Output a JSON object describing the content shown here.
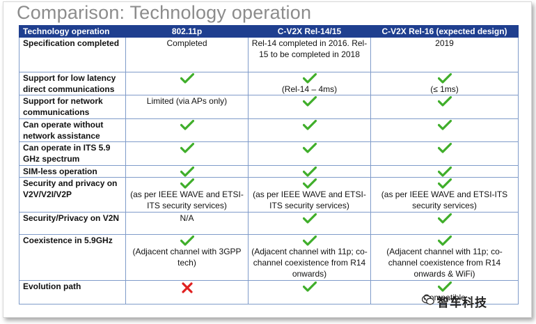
{
  "title": "Comparison: Technology operation",
  "table": {
    "headers": [
      "Technology operation",
      "802.11p",
      "C-V2X Rel-14/15",
      "C-V2X Rel-16 (expected design)"
    ],
    "rows": [
      {
        "label": "Specification completed",
        "c1": {
          "check": false,
          "text": "Completed"
        },
        "c2": {
          "check": false,
          "text": "Rel-14 completed in 2016. Rel-15 to be completed in 2018"
        },
        "c3": {
          "check": false,
          "text": "2019"
        }
      },
      {
        "label": "Support for low latency direct communications",
        "c1": {
          "check": true,
          "text": ""
        },
        "c2": {
          "check": true,
          "text": "(Rel-14 – 4ms)"
        },
        "c3": {
          "check": true,
          "text": "(≤ 1ms)"
        }
      },
      {
        "label": "Support for network communications",
        "c1": {
          "check": false,
          "text": "Limited (via APs only)"
        },
        "c2": {
          "check": true,
          "text": ""
        },
        "c3": {
          "check": true,
          "text": ""
        }
      },
      {
        "label": "Can operate without network assistance",
        "c1": {
          "check": true,
          "text": ""
        },
        "c2": {
          "check": true,
          "text": ""
        },
        "c3": {
          "check": true,
          "text": ""
        }
      },
      {
        "label": "Can operate in ITS 5.9 GHz spectrum",
        "c1": {
          "check": true,
          "text": ""
        },
        "c2": {
          "check": true,
          "text": ""
        },
        "c3": {
          "check": true,
          "text": ""
        }
      },
      {
        "label": "SIM-less operation",
        "c1": {
          "check": true,
          "text": ""
        },
        "c2": {
          "check": true,
          "text": ""
        },
        "c3": {
          "check": true,
          "text": ""
        }
      },
      {
        "label": "Security and privacy on V2V/V2I/V2P",
        "c1": {
          "check": true,
          "text": "(as per IEEE WAVE and ETSI-ITS security services)"
        },
        "c2": {
          "check": true,
          "text": "(as per IEEE WAVE and ETSI-ITS security services)"
        },
        "c3": {
          "check": true,
          "text": "(as per IEEE WAVE and ETSI-ITS security services)"
        }
      },
      {
        "label": "Security/Privacy on V2N",
        "c1": {
          "check": false,
          "text": "N/A"
        },
        "c2": {
          "check": true,
          "text": ""
        },
        "c3": {
          "check": true,
          "text": ""
        }
      },
      {
        "label": "Coexistence in 5.9GHz",
        "c1": {
          "check": true,
          "text": "(Adjacent channel with 3GPP tech)"
        },
        "c2": {
          "check": true,
          "text": "(Adjacent channel with 11p; co-channel coexistence from R14 onwards)"
        },
        "c3": {
          "check": true,
          "text": "(Adjacent channel with 11p; co-channel coexistence from R14 onwards & WiFi)"
        }
      },
      {
        "label": "Evolution path",
        "c1": {
          "check": false,
          "cross": true,
          "text": ""
        },
        "c2": {
          "check": true,
          "text": ""
        },
        "c3": {
          "check": true,
          "text": "Compatible"
        }
      }
    ]
  },
  "watermark": "智车科技",
  "colors": {
    "header_bg": "#1f3f8f",
    "check": "#3fae2a",
    "cross": "#e02020",
    "grid": "#7f9bc9",
    "title": "#8c8c8c"
  }
}
